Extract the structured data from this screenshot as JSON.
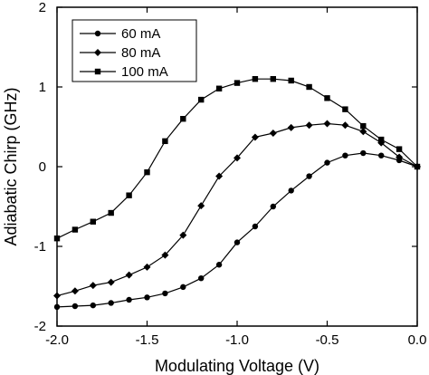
{
  "chart_data": {
    "type": "line",
    "title": "",
    "xlabel": "Modulating Voltage (V)",
    "ylabel": "Adiabatic Chirp (GHz)",
    "xlim": [
      -2.0,
      0.0
    ],
    "ylim": [
      -2,
      2
    ],
    "xticks": [
      -2.0,
      -1.5,
      -1.0,
      -0.5,
      0.0
    ],
    "xtick_labels": [
      "-2.0",
      "-1.5",
      "-1.0",
      "-0.5",
      "0.0"
    ],
    "yticks": [
      -2,
      -1,
      0,
      1,
      2
    ],
    "ytick_labels": [
      "-2",
      "-1",
      "0",
      "1",
      "2"
    ],
    "grid": false,
    "legend_position": "top-left",
    "series": [
      {
        "name": "60 mA",
        "marker": "circle",
        "x": [
          -2.0,
          -1.9,
          -1.8,
          -1.7,
          -1.6,
          -1.5,
          -1.4,
          -1.3,
          -1.2,
          -1.1,
          -1.0,
          -0.9,
          -0.8,
          -0.7,
          -0.6,
          -0.5,
          -0.4,
          -0.3,
          -0.2,
          -0.1,
          0.0
        ],
        "y": [
          -1.76,
          -1.75,
          -1.74,
          -1.71,
          -1.67,
          -1.64,
          -1.59,
          -1.51,
          -1.4,
          -1.23,
          -0.95,
          -0.75,
          -0.5,
          -0.3,
          -0.12,
          0.05,
          0.14,
          0.17,
          0.14,
          0.08,
          0.0
        ]
      },
      {
        "name": "80 mA",
        "marker": "diamond",
        "x": [
          -2.0,
          -1.9,
          -1.8,
          -1.7,
          -1.6,
          -1.5,
          -1.4,
          -1.3,
          -1.2,
          -1.1,
          -1.0,
          -0.9,
          -0.8,
          -0.7,
          -0.6,
          -0.5,
          -0.4,
          -0.3,
          -0.2,
          -0.1,
          0.0
        ],
        "y": [
          -1.62,
          -1.56,
          -1.49,
          -1.45,
          -1.36,
          -1.26,
          -1.11,
          -0.86,
          -0.49,
          -0.12,
          0.11,
          0.37,
          0.42,
          0.49,
          0.52,
          0.54,
          0.52,
          0.44,
          0.3,
          0.12,
          0.0
        ]
      },
      {
        "name": "100 mA",
        "marker": "square",
        "x": [
          -2.0,
          -1.9,
          -1.8,
          -1.7,
          -1.6,
          -1.5,
          -1.4,
          -1.3,
          -1.2,
          -1.1,
          -1.0,
          -0.9,
          -0.8,
          -0.7,
          -0.6,
          -0.5,
          -0.4,
          -0.3,
          -0.2,
          -0.1,
          0.0
        ],
        "y": [
          -0.9,
          -0.79,
          -0.69,
          -0.58,
          -0.36,
          -0.07,
          0.32,
          0.6,
          0.84,
          0.98,
          1.05,
          1.1,
          1.1,
          1.08,
          1.0,
          0.86,
          0.72,
          0.51,
          0.34,
          0.22,
          0.0
        ]
      }
    ]
  }
}
